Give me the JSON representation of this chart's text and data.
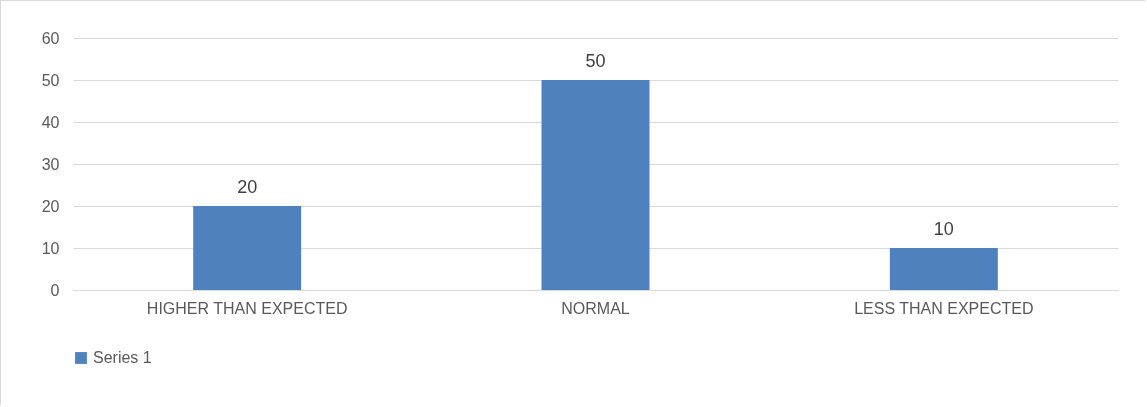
{
  "chart_data": {
    "type": "bar",
    "categories": [
      "HIGHER THAN EXPECTED",
      "NORMAL",
      "LESS THAN EXPECTED"
    ],
    "series": [
      {
        "name": "Series 1",
        "color": "#4f81bd",
        "values": [
          20,
          50,
          10
        ]
      }
    ],
    "ylim": [
      0,
      60
    ],
    "yticks": [
      0,
      10,
      20,
      30,
      40,
      50,
      60
    ],
    "grid": "y",
    "legend": "bottom",
    "data_labels": true
  }
}
